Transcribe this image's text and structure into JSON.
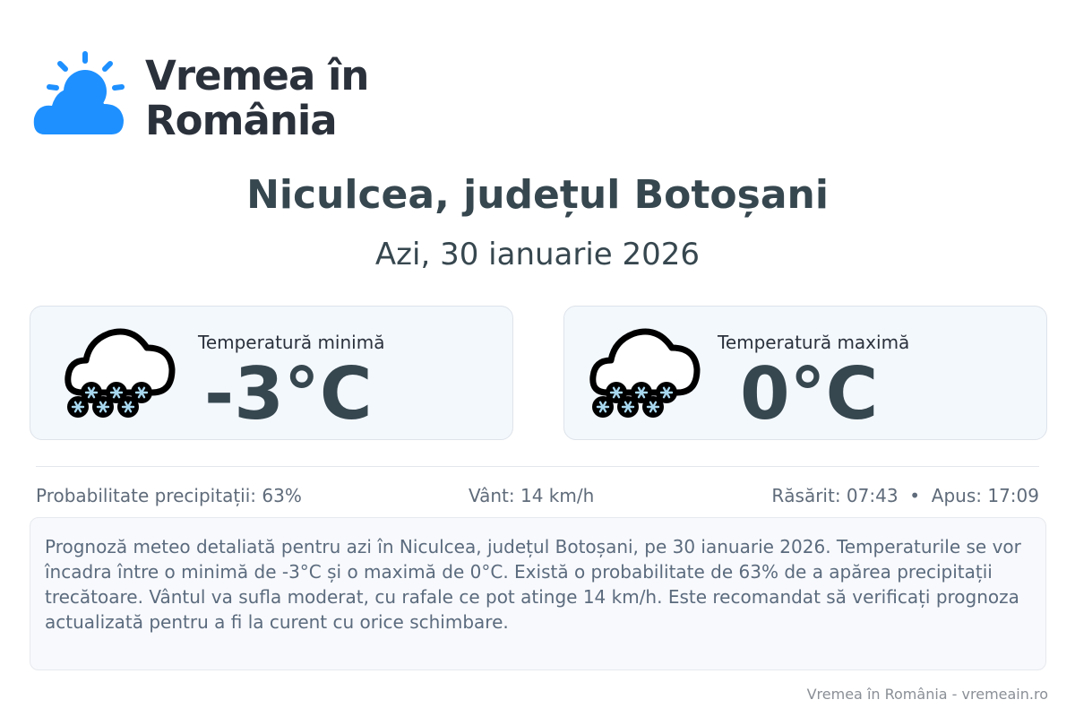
{
  "brand": {
    "name_line1": "Vremea în",
    "name_line2": "România",
    "color": "#1e90ff"
  },
  "header": {
    "title": "Niculcea, județul Botoșani",
    "date": "Azi, 30 ianuarie 2026"
  },
  "cards": [
    {
      "label": "Temperatură minimă",
      "value": "-3°C",
      "icon": "snow-cloud-icon"
    },
    {
      "label": "Temperatură maximă",
      "value": "0°C",
      "icon": "snow-cloud-icon"
    }
  ],
  "stats": {
    "precip": "Probabilitate precipitații: 63%",
    "wind": "Vânt: 14 km/h",
    "sun": "Răsărit: 07:43  •  Apus: 17:09"
  },
  "description": "Prognoză meteo detaliată pentru azi în Niculcea, județul Botoșani, pe 30 ianuarie 2026. Temperaturile se vor încadra între o minimă de -3°C și o maximă de 0°C. Există o probabilitate de 63% de a apărea precipitații trecătoare. Vântul va sufla moderat, cu rafale ce pot atinge 14 km/h. Este recomandat să verificați prognoza actualizată pentru a fi la curent cu orice schimbare.",
  "footer": "Vremea în România - vremeain.ro"
}
